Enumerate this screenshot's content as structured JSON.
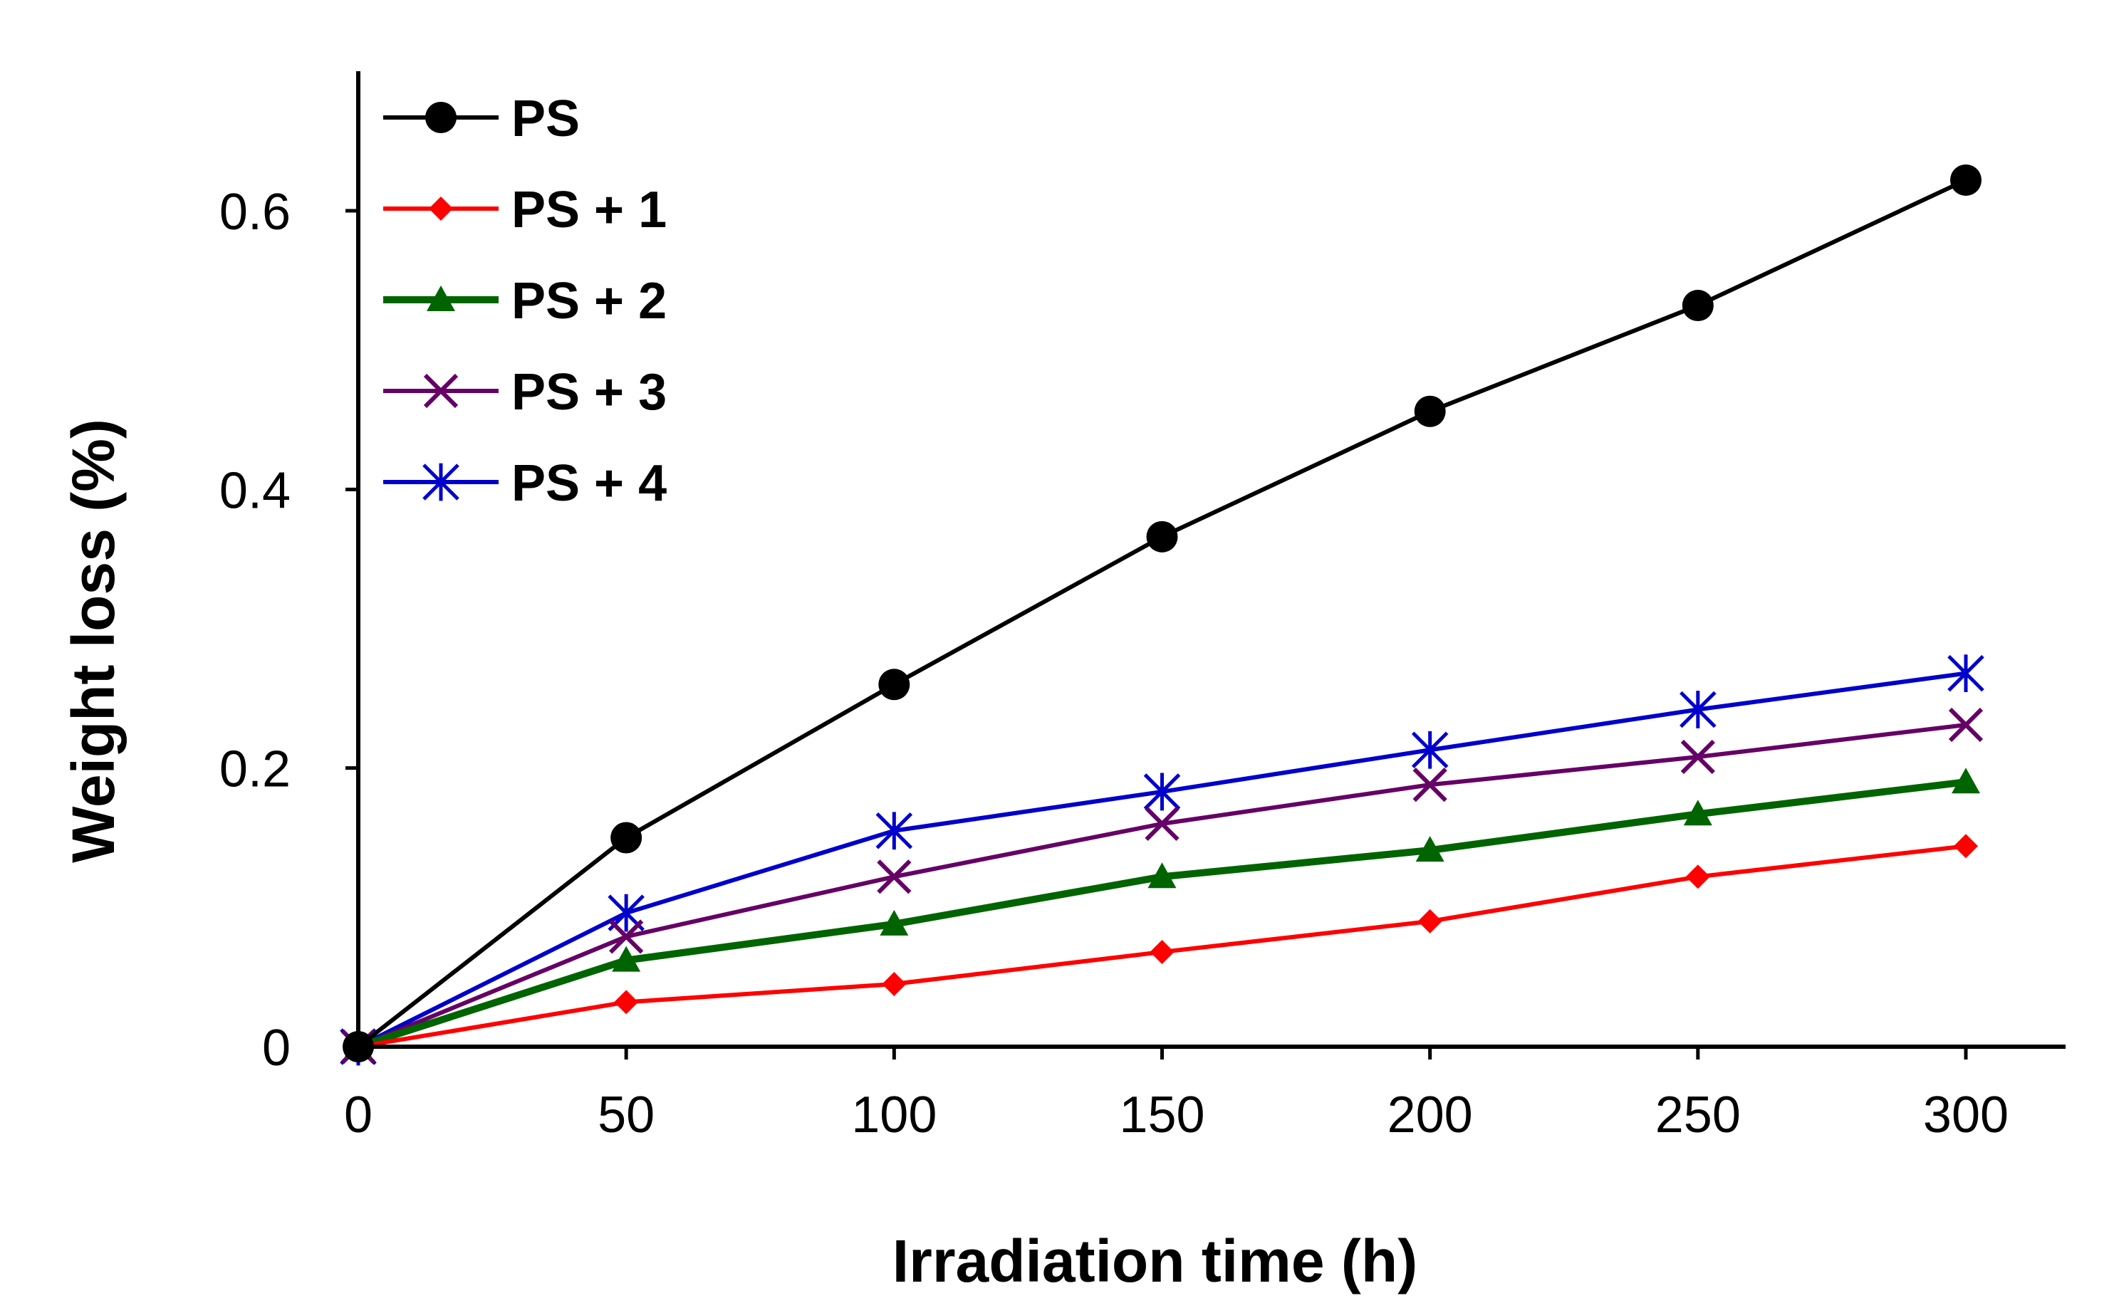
{
  "chart_data": {
    "type": "line",
    "title": "",
    "xlabel": "Irradiation time (h)",
    "ylabel": "Weight loss (%)",
    "x": [
      0,
      50,
      100,
      150,
      200,
      250,
      300
    ],
    "xticks": [
      "0",
      "50",
      "100",
      "150",
      "200",
      "250",
      "300"
    ],
    "yticks": [
      "0",
      "0.2",
      "0.4",
      "0.6"
    ],
    "xlim": [
      0,
      320
    ],
    "ylim": [
      0,
      0.7
    ],
    "grid": false,
    "legend_position": "top-left",
    "series": [
      {
        "name": "PS",
        "values": [
          0,
          0.15,
          0.26,
          0.366,
          0.456,
          0.532,
          0.622
        ],
        "color": "#000000",
        "marker": "circle"
      },
      {
        "name": "PS + 1",
        "values": [
          0,
          0.032,
          0.045,
          0.068,
          0.09,
          0.122,
          0.144
        ],
        "color": "#ff0000",
        "marker": "diamond"
      },
      {
        "name": "PS + 2",
        "values": [
          0,
          0.062,
          0.088,
          0.122,
          0.141,
          0.167,
          0.19
        ],
        "color": "#006400",
        "marker": "triangle"
      },
      {
        "name": "PS + 3",
        "values": [
          0,
          0.079,
          0.122,
          0.16,
          0.188,
          0.208,
          0.231
        ],
        "color": "#660066",
        "marker": "x"
      },
      {
        "name": "PS + 4",
        "values": [
          0,
          0.096,
          0.155,
          0.183,
          0.213,
          0.242,
          0.268
        ],
        "color": "#0000cc",
        "marker": "star"
      }
    ]
  }
}
